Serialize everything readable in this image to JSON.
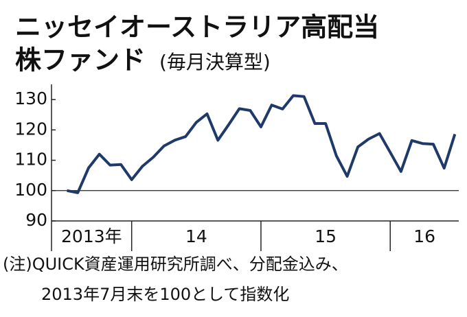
{
  "chart_data": {
    "type": "line",
    "title": "ニッセイオーストラリア高配当",
    "subtitle": "株ファンド",
    "subtitle_note": "(毎月決算型)",
    "notes": [
      "(注)QUICK資産運用研究所調べ、分配金込み、",
      "2013年7月末を100として指数化"
    ],
    "x": [
      2013.5,
      2013.583,
      2013.667,
      2013.75,
      2013.833,
      2013.917,
      2014,
      2014.083,
      2014.167,
      2014.25,
      2014.333,
      2014.417,
      2014.5,
      2014.583,
      2014.667,
      2014.75,
      2014.833,
      2014.917,
      2015,
      2015.083,
      2015.167,
      2015.25,
      2015.333,
      2015.417,
      2015.5,
      2015.583,
      2015.667,
      2015.75,
      2015.833,
      2015.917,
      2016,
      2016.083,
      2016.167,
      2016.25,
      2016.333,
      2016.417,
      2016.5
    ],
    "values": [
      100,
      99.3,
      107.5,
      112,
      108.4,
      108.6,
      103.6,
      108,
      111,
      114.7,
      116.6,
      117.8,
      122.5,
      125.3,
      116.6,
      121.7,
      127,
      126.4,
      121,
      128.2,
      126.9,
      131.3,
      131,
      122.1,
      122.1,
      111.5,
      104.7,
      114.4,
      117,
      118.8,
      112.6,
      106.3,
      116.5,
      115.5,
      115.3,
      107.4,
      118.6
    ],
    "color": "#1f3a68",
    "xlim": [
      2013.38,
      2016.53
    ],
    "xticks": [
      2014,
      2015,
      2016
    ],
    "xlabels": [
      {
        "value": 2013,
        "label": "2013年"
      },
      {
        "value": 2014,
        "label": "14"
      },
      {
        "value": 2015,
        "label": "15"
      },
      {
        "value": 2016,
        "label": "16"
      }
    ],
    "ylim": [
      90,
      135
    ],
    "yticks": [
      90,
      100,
      110,
      120,
      130
    ],
    "reference_line": 100
  }
}
